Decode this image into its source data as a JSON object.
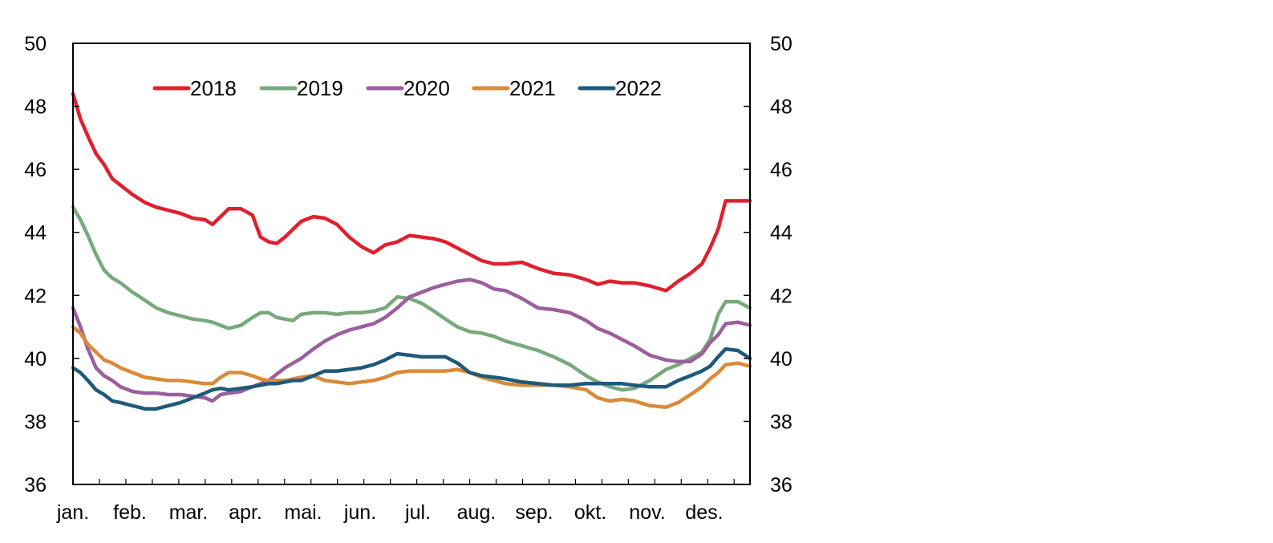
{
  "chart_data": {
    "type": "line",
    "title": "",
    "xlabel": "",
    "ylabel": "",
    "ylim": [
      36,
      50
    ],
    "yticks": [
      "36",
      "38",
      "40",
      "42",
      "44",
      "46",
      "48",
      "50"
    ],
    "yticks_right": [
      "36",
      "38",
      "40",
      "42",
      "44",
      "46",
      "48",
      "50"
    ],
    "x_unit": "fraction of year (0 = 1 Jan, 1 = 31 Dec)",
    "month_labels": [
      "jan.",
      "feb.",
      "mar.",
      "apr.",
      "mai.",
      "jun.",
      "jul.",
      "aug.",
      "sep.",
      "okt.",
      "nov.",
      "des."
    ],
    "grid": false,
    "legend_position": "top-center",
    "x": [
      0.0,
      0.011,
      0.022,
      0.034,
      0.046,
      0.058,
      0.07,
      0.088,
      0.106,
      0.123,
      0.141,
      0.159,
      0.177,
      0.195,
      0.206,
      0.218,
      0.23,
      0.248,
      0.265,
      0.277,
      0.289,
      0.301,
      0.313,
      0.325,
      0.337,
      0.355,
      0.372,
      0.39,
      0.408,
      0.426,
      0.444,
      0.461,
      0.479,
      0.497,
      0.515,
      0.533,
      0.55,
      0.568,
      0.586,
      0.604,
      0.622,
      0.639,
      0.663,
      0.687,
      0.71,
      0.734,
      0.758,
      0.775,
      0.793,
      0.811,
      0.829,
      0.852,
      0.876,
      0.894,
      0.912,
      0.929,
      0.941,
      0.953,
      0.964,
      0.982,
      1.0
    ],
    "series": [
      {
        "name": "2018",
        "color": "#e0202e",
        "values": [
          48.4,
          47.6,
          47.05,
          46.5,
          46.15,
          45.7,
          45.5,
          45.2,
          44.95,
          44.8,
          44.7,
          44.6,
          44.45,
          44.4,
          44.25,
          44.5,
          44.75,
          44.75,
          44.55,
          43.85,
          43.7,
          43.65,
          43.85,
          44.1,
          44.35,
          44.5,
          44.45,
          44.25,
          43.85,
          43.55,
          43.35,
          43.6,
          43.7,
          43.9,
          43.85,
          43.8,
          43.7,
          43.5,
          43.3,
          43.1,
          43.0,
          43.0,
          43.05,
          42.85,
          42.7,
          42.65,
          42.5,
          42.35,
          42.45,
          42.4,
          42.4,
          42.3,
          42.15,
          42.45,
          42.7,
          43.0,
          43.5,
          44.1,
          45.0,
          45.0,
          45.0
        ]
      },
      {
        "name": "2019",
        "color": "#77a97c",
        "values": [
          44.8,
          44.4,
          43.9,
          43.3,
          42.8,
          42.55,
          42.4,
          42.1,
          41.85,
          41.6,
          41.45,
          41.35,
          41.25,
          41.2,
          41.15,
          41.05,
          40.95,
          41.05,
          41.3,
          41.45,
          41.45,
          41.3,
          41.25,
          41.2,
          41.4,
          41.45,
          41.45,
          41.4,
          41.45,
          41.45,
          41.5,
          41.6,
          41.95,
          41.9,
          41.75,
          41.5,
          41.25,
          41.0,
          40.85,
          40.8,
          40.7,
          40.55,
          40.4,
          40.25,
          40.05,
          39.8,
          39.45,
          39.25,
          39.1,
          39.0,
          39.05,
          39.3,
          39.65,
          39.8,
          40.0,
          40.2,
          40.6,
          41.4,
          41.8,
          41.8,
          41.6
        ]
      },
      {
        "name": "2020",
        "color": "#9b5e9e",
        "values": [
          41.6,
          41.0,
          40.3,
          39.7,
          39.45,
          39.3,
          39.1,
          38.95,
          38.9,
          38.9,
          38.85,
          38.85,
          38.8,
          38.75,
          38.65,
          38.85,
          38.9,
          38.95,
          39.1,
          39.2,
          39.3,
          39.5,
          39.7,
          39.85,
          40.0,
          40.3,
          40.55,
          40.75,
          40.9,
          41.0,
          41.1,
          41.3,
          41.6,
          41.95,
          42.1,
          42.25,
          42.35,
          42.45,
          42.5,
          42.4,
          42.2,
          42.15,
          41.9,
          41.6,
          41.55,
          41.45,
          41.2,
          40.95,
          40.8,
          40.6,
          40.4,
          40.1,
          39.95,
          39.9,
          39.9,
          40.15,
          40.5,
          40.75,
          41.1,
          41.15,
          41.05
        ]
      },
      {
        "name": "2021",
        "color": "#d98a3a",
        "values": [
          41.0,
          40.8,
          40.45,
          40.2,
          39.95,
          39.85,
          39.7,
          39.55,
          39.4,
          39.35,
          39.3,
          39.3,
          39.25,
          39.2,
          39.2,
          39.4,
          39.55,
          39.55,
          39.45,
          39.35,
          39.3,
          39.3,
          39.3,
          39.35,
          39.4,
          39.45,
          39.3,
          39.25,
          39.2,
          39.25,
          39.3,
          39.4,
          39.55,
          39.6,
          39.6,
          39.6,
          39.6,
          39.65,
          39.55,
          39.4,
          39.3,
          39.2,
          39.15,
          39.15,
          39.15,
          39.1,
          39.0,
          38.75,
          38.65,
          38.7,
          38.65,
          38.5,
          38.45,
          38.6,
          38.85,
          39.1,
          39.35,
          39.55,
          39.8,
          39.85,
          39.75
        ]
      },
      {
        "name": "2022",
        "color": "#1e5a7a",
        "values": [
          39.7,
          39.55,
          39.3,
          39.0,
          38.85,
          38.65,
          38.6,
          38.5,
          38.4,
          38.4,
          38.5,
          38.6,
          38.75,
          38.9,
          39.0,
          39.05,
          39.0,
          39.05,
          39.1,
          39.15,
          39.2,
          39.2,
          39.25,
          39.3,
          39.3,
          39.45,
          39.6,
          39.6,
          39.65,
          39.7,
          39.8,
          39.95,
          40.15,
          40.1,
          40.05,
          40.05,
          40.05,
          39.85,
          39.55,
          39.45,
          39.4,
          39.35,
          39.25,
          39.2,
          39.15,
          39.15,
          39.2,
          39.2,
          39.2,
          39.2,
          39.15,
          39.1,
          39.1,
          39.3,
          39.45,
          39.6,
          39.75,
          40.05,
          40.3,
          40.25,
          40.0
        ]
      }
    ]
  }
}
